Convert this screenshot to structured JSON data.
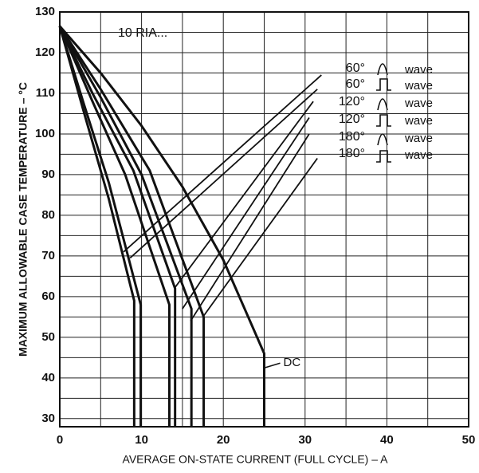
{
  "chart_data": {
    "type": "line",
    "xlabel": "AVERAGE ON-STATE CURRENT (FULL CYCLE) – A",
    "ylabel": "MAXIMUM ALLOWABLE CASE TEMPERATURE – °C",
    "annotation": "10 RIA...",
    "xlim": [
      0,
      50
    ],
    "ylim": [
      28,
      130
    ],
    "xticks": [
      0,
      10,
      20,
      30,
      40,
      50
    ],
    "yticks": [
      30,
      40,
      50,
      60,
      70,
      80,
      90,
      100,
      110,
      120,
      130
    ],
    "xminor_ticks": [
      5,
      15,
      25,
      35,
      45
    ],
    "yminor_ticks": [
      35,
      45,
      55,
      65,
      75,
      85,
      95,
      105,
      115,
      125
    ],
    "grid": true,
    "color": "#111111",
    "legend": [
      {
        "angle": "60°",
        "wave": "wave"
      },
      {
        "angle": "60°",
        "wave": "wave"
      },
      {
        "angle": "120°",
        "wave": "wave"
      },
      {
        "angle": "120°",
        "wave": "wave"
      },
      {
        "angle": "180°",
        "wave": "wave"
      },
      {
        "angle": "180°",
        "wave": "wave"
      }
    ],
    "series": [
      {
        "x": [
          0,
          3,
          6,
          9.1,
          9.1
        ],
        "values": [
          126.5,
          105,
          84,
          59,
          28
        ]
      },
      {
        "x": [
          0,
          3,
          6,
          9.9,
          9.9
        ],
        "values": [
          126.5,
          107,
          88,
          58,
          28
        ]
      },
      {
        "x": [
          0,
          4,
          8,
          13.4,
          13.4
        ],
        "values": [
          126.5,
          108,
          90,
          58,
          28
        ]
      },
      {
        "x": [
          0,
          4,
          9,
          14.1,
          14.1
        ],
        "values": [
          126.5,
          110,
          91,
          62,
          28
        ]
      },
      {
        "x": [
          0,
          5,
          10,
          16.1,
          16.1
        ],
        "values": [
          126.5,
          109,
          90,
          57,
          28
        ]
      },
      {
        "x": [
          0,
          5,
          11,
          17.6,
          17.6
        ],
        "values": [
          126.5,
          111,
          91,
          55,
          28
        ]
      },
      {
        "name": "DC",
        "x": [
          0,
          5,
          10,
          15,
          20,
          25,
          25
        ],
        "values": [
          126.5,
          115,
          102,
          87,
          69,
          46,
          28
        ]
      },
      {
        "x": [
          7.8,
          32
        ],
        "values": [
          71,
          114.5
        ]
      },
      {
        "x": [
          8.6,
          31.5
        ],
        "values": [
          69.5,
          111
        ]
      },
      {
        "x": [
          14,
          31
        ],
        "values": [
          62,
          108
        ]
      },
      {
        "x": [
          15,
          30.5
        ],
        "values": [
          57,
          104
        ]
      },
      {
        "x": [
          16,
          30.5
        ],
        "values": [
          54,
          100
        ]
      },
      {
        "x": [
          17.5,
          31.5
        ],
        "values": [
          55,
          94
        ]
      }
    ]
  }
}
